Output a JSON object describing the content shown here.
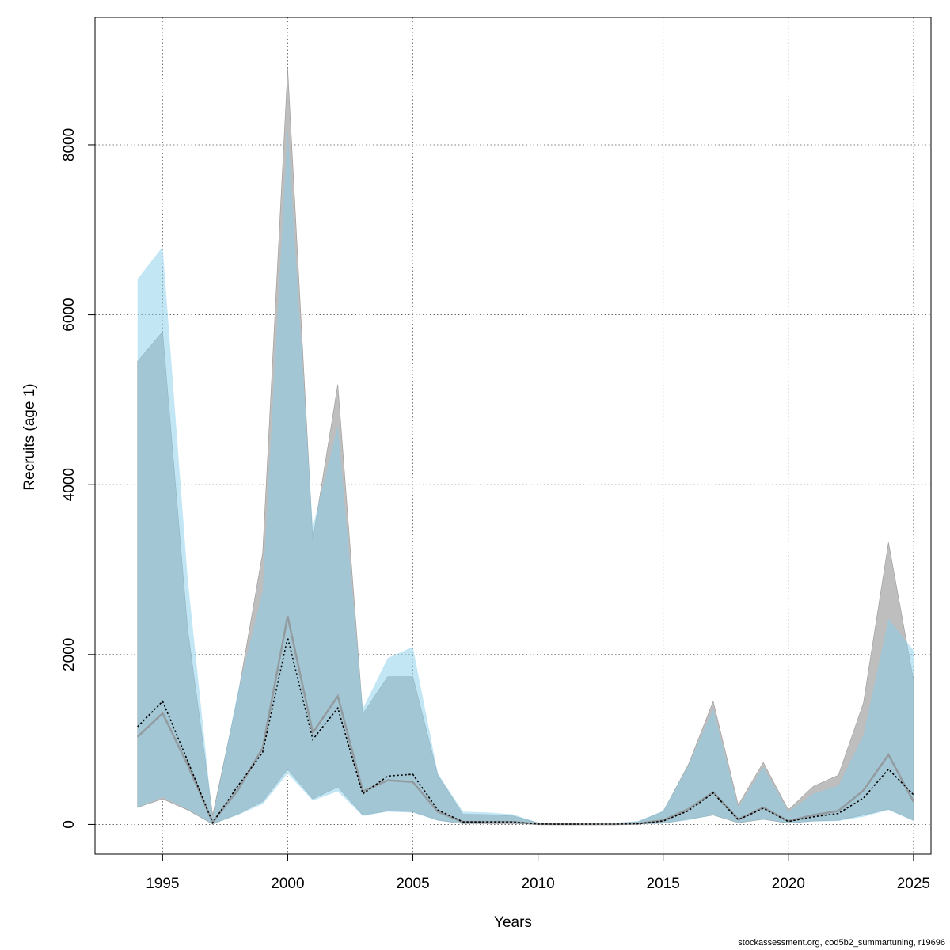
{
  "chart_data": {
    "type": "area",
    "xlabel": "Years",
    "ylabel": "Recruits (age 1)",
    "xlim": [
      1992.3,
      2025.7
    ],
    "ylim": [
      -350,
      9500
    ],
    "x_ticks": [
      1995,
      2000,
      2005,
      2010,
      2015,
      2020,
      2025
    ],
    "y_ticks": [
      0,
      2000,
      4000,
      6000,
      8000
    ],
    "grid": true,
    "x": [
      1994,
      1995,
      1996,
      1997,
      1998,
      1999,
      2000,
      2001,
      2002,
      2003,
      2004,
      2005,
      2006,
      2007,
      2008,
      2009,
      2010,
      2011,
      2012,
      2013,
      2014,
      2015,
      2016,
      2017,
      2018,
      2019,
      2020,
      2021,
      2022,
      2023,
      2024,
      2025
    ],
    "series": [
      {
        "color": "#8c8c8c",
        "fill": "#bebebe",
        "line_style": "solid",
        "estimate": [
          1030,
          1310,
          700,
          30,
          400,
          900,
          2450,
          1080,
          1510,
          390,
          520,
          500,
          150,
          30,
          30,
          30,
          5,
          3,
          3,
          3,
          10,
          50,
          180,
          380,
          60,
          200,
          40,
          110,
          160,
          400,
          820,
          270
        ],
        "lower": [
          200,
          300,
          170,
          5,
          120,
          270,
          650,
          300,
          440,
          110,
          160,
          150,
          50,
          10,
          10,
          10,
          2,
          1,
          1,
          1,
          3,
          15,
          60,
          110,
          20,
          60,
          15,
          40,
          50,
          110,
          180,
          50
        ],
        "upper": [
          5450,
          5800,
          2300,
          110,
          1500,
          3200,
          8900,
          3350,
          5180,
          1300,
          1740,
          1740,
          580,
          120,
          115,
          100,
          20,
          15,
          15,
          15,
          30,
          150,
          700,
          1450,
          230,
          730,
          170,
          450,
          580,
          1430,
          3320,
          1700
        ]
      },
      {
        "color": "#000000",
        "fill": "#87ceeb",
        "line_style": "dotted",
        "estimate": [
          1150,
          1450,
          750,
          20,
          450,
          850,
          2200,
          1000,
          1370,
          360,
          570,
          590,
          170,
          30,
          30,
          30,
          5,
          3,
          3,
          3,
          10,
          40,
          160,
          370,
          55,
          190,
          35,
          90,
          130,
          310,
          650,
          350
        ],
        "lower": [
          200,
          320,
          180,
          5,
          110,
          240,
          600,
          280,
          390,
          100,
          150,
          140,
          45,
          10,
          10,
          10,
          2,
          1,
          1,
          1,
          3,
          12,
          50,
          110,
          20,
          60,
          15,
          35,
          40,
          90,
          170,
          40
        ],
        "upper": [
          6420,
          6800,
          2900,
          70,
          1550,
          2750,
          8200,
          3500,
          4700,
          1360,
          1960,
          2090,
          600,
          150,
          140,
          120,
          20,
          15,
          15,
          15,
          40,
          160,
          690,
          1360,
          200,
          680,
          150,
          360,
          460,
          1050,
          2420,
          2050
        ]
      }
    ]
  },
  "footer": {
    "text": "stockassessment.org, cod5b2_summartuning, r19696"
  }
}
